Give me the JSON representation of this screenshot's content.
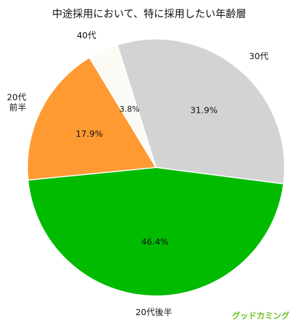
{
  "chart_data": {
    "type": "pie",
    "title": "中途採用において、特に採用したい年齢層",
    "slices": [
      {
        "label": "30代",
        "value": 31.9,
        "value_label": "31.9%",
        "color": "#d3d3d3"
      },
      {
        "label": "20代後半",
        "value": 46.4,
        "value_label": "46.4%",
        "color": "#00bb00"
      },
      {
        "label": "20代\n前半",
        "value": 17.9,
        "value_label": "17.9%",
        "color": "#ff9a33"
      },
      {
        "label": "40代",
        "value": 3.8,
        "value_label": "3.8%",
        "color": "#fbfaf5"
      }
    ],
    "start_angle_deg": -17.5,
    "direction": "clockwise"
  },
  "brand": {
    "text": "グッドカミング",
    "color": "#6abf1e"
  }
}
